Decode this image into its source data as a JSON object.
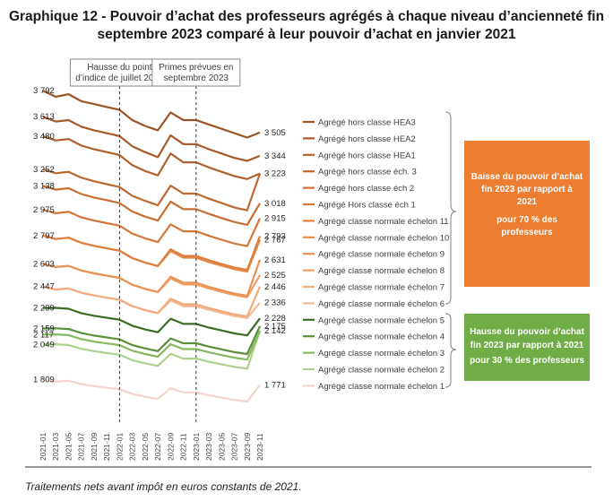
{
  "chart_data": {
    "type": "line",
    "title_lines": [
      "Graphique 12 - Pouvoir d’achat des professeurs agrégés à chaque niveau d’ancienneté fin",
      "septembre 2023 comparé à leur pouvoir d’achat en janvier 2021"
    ],
    "x": [
      "2021-01",
      "2021-03",
      "2021-05",
      "2021-07",
      "2021-09",
      "2021-11",
      "2022-01",
      "2022-03",
      "2022-05",
      "2022-07",
      "2022-09",
      "2022-11",
      "2023-01",
      "2023-03",
      "2023-05",
      "2023-07",
      "2023-09",
      "2023-11"
    ],
    "ylim": [
      1700,
      3830
    ],
    "markers": [
      {
        "x": 6,
        "label_lines": [
          "Hausse du point",
          "d’indice de juillet 2022"
        ]
      },
      {
        "x": 12,
        "label_lines": [
          "Primes prévues en",
          "septembre 2023"
        ]
      }
    ],
    "left_labels": [
      "3 792",
      "3 613",
      "3 480",
      "3 252",
      "3 138",
      "2 975",
      "2 797",
      "2 603",
      "2 447",
      "2 299",
      "2 159",
      "2 117",
      "2 049",
      "1 809"
    ],
    "right_labels": [
      "3 505",
      "3 344",
      "3 223",
      "3 018",
      "2 915",
      "2 793",
      "2 767",
      "2 631",
      "2 525",
      "2 446",
      "2 336",
      "2 228",
      "2 175",
      "2 142",
      "1 771"
    ],
    "series": [
      {
        "name": "Agrégé hors classe HEA3",
        "color": "#9b5525",
        "start": 3792,
        "end": 3505,
        "values": [
          3792,
          3750,
          3768,
          3720,
          3700,
          3680,
          3660,
          3590,
          3550,
          3520,
          3642,
          3590,
          3590,
          3560,
          3530,
          3500,
          3470,
          3505
        ]
      },
      {
        "name": "Agrégé hors classe HEA2",
        "color": "#a65a28",
        "start": 3613,
        "end": 3344,
        "values": [
          3613,
          3580,
          3590,
          3545,
          3520,
          3500,
          3480,
          3410,
          3370,
          3335,
          3485,
          3425,
          3425,
          3390,
          3360,
          3330,
          3310,
          3344
        ]
      },
      {
        "name": "Agrégé hors classe HEA1",
        "color": "#b1612b",
        "start": 3480,
        "end": 3223,
        "values": [
          3480,
          3450,
          3460,
          3415,
          3390,
          3370,
          3350,
          3280,
          3240,
          3210,
          3360,
          3300,
          3300,
          3265,
          3235,
          3205,
          3185,
          3223
        ]
      },
      {
        "name": "Agrégé hors classe éch. 3",
        "color": "#bc682f",
        "start": 3252,
        "end": 3223,
        "values": [
          3252,
          3225,
          3235,
          3195,
          3170,
          3150,
          3130,
          3070,
          3035,
          3005,
          3140,
          3085,
          3085,
          3050,
          3020,
          2990,
          2970,
          3223
        ]
      },
      {
        "name": "Agrégé hors classe éch 2",
        "color": "#c76f33",
        "start": 3138,
        "end": 3018,
        "values": [
          3138,
          3112,
          3122,
          3082,
          3058,
          3040,
          3020,
          2962,
          2927,
          2900,
          3030,
          2978,
          2978,
          2946,
          2917,
          2890,
          2870,
          3018
        ]
      },
      {
        "name": "Agrégé Hors classe éch 1",
        "color": "#d37738",
        "start": 2975,
        "end": 2915,
        "values": [
          2975,
          2950,
          2960,
          2922,
          2900,
          2882,
          2865,
          2810,
          2778,
          2752,
          2874,
          2826,
          2826,
          2795,
          2768,
          2742,
          2724,
          2915
        ]
      },
      {
        "name": "Agrégé classe normale échelon 11",
        "color": "#dd7f3e",
        "start": 2797,
        "end": 2793,
        "values": [
          2797,
          2773,
          2782,
          2747,
          2726,
          2709,
          2693,
          2642,
          2612,
          2588,
          2702,
          2657,
          2657,
          2628,
          2602,
          2578,
          2561,
          2793
        ]
      },
      {
        "name": "Agrégé classe normale échelon 10",
        "color": "#e58847",
        "start": 2797,
        "end": 2767,
        "values": [
          2797,
          2773,
          2782,
          2747,
          2726,
          2709,
          2693,
          2642,
          2612,
          2588,
          2690,
          2645,
          2645,
          2615,
          2590,
          2566,
          2549,
          2767
        ]
      },
      {
        "name": "Agrégé classe normale échelon 9",
        "color": "#ea9356",
        "start": 2603,
        "end": 2631,
        "values": [
          2603,
          2581,
          2589,
          2557,
          2537,
          2521,
          2506,
          2459,
          2431,
          2409,
          2514,
          2473,
          2473,
          2445,
          2421,
          2399,
          2383,
          2631
        ]
      },
      {
        "name": "Agrégé classe normale échelon 8",
        "color": "#ee9f67",
        "start": 2603,
        "end": 2525,
        "values": [
          2603,
          2581,
          2589,
          2557,
          2537,
          2521,
          2506,
          2459,
          2431,
          2409,
          2502,
          2461,
          2461,
          2434,
          2410,
          2388,
          2372,
          2525
        ]
      },
      {
        "name": "Agrégé classe normale échelon 7",
        "color": "#f1ac7b",
        "start": 2447,
        "end": 2446,
        "values": [
          2447,
          2426,
          2434,
          2404,
          2385,
          2370,
          2356,
          2312,
          2285,
          2264,
          2363,
          2325,
          2325,
          2299,
          2277,
          2256,
          2241,
          2446
        ]
      },
      {
        "name": "Agrégé classe normale échelon 6",
        "color": "#f4ba91",
        "start": 2447,
        "end": 2336,
        "values": [
          2447,
          2426,
          2434,
          2404,
          2385,
          2370,
          2356,
          2312,
          2285,
          2264,
          2350,
          2312,
          2312,
          2287,
          2265,
          2245,
          2230,
          2336
        ]
      },
      {
        "name": "Agrégé classe normale échelon 5",
        "color": "#3b6b25",
        "start": 2299,
        "end": 2228,
        "values": [
          2299,
          2300,
          2294,
          2264,
          2246,
          2232,
          2219,
          2178,
          2152,
          2133,
          2226,
          2190,
          2190,
          2165,
          2145,
          2125,
          2111,
          2228
        ]
      },
      {
        "name": "Agrégé classe normale échelon 4",
        "color": "#5b8f3a",
        "start": 2159,
        "end": 2175,
        "values": [
          2159,
          2160,
          2155,
          2127,
          2110,
          2097,
          2084,
          2045,
          2022,
          2003,
          2090,
          2057,
          2057,
          2034,
          2015,
          1996,
          1983,
          2175
        ]
      },
      {
        "name": "Agrégé classe normale échelon 3",
        "color": "#86b860",
        "start": 2117,
        "end": 2142,
        "values": [
          2117,
          2118,
          2113,
          2086,
          2069,
          2056,
          2044,
          2006,
          1983,
          1965,
          2050,
          2017,
          2017,
          1995,
          1976,
          1958,
          1945,
          2142
        ]
      },
      {
        "name": "Agrégé classe normale échelon 2",
        "color": "#aed08e",
        "start": 2049,
        "end": 2142,
        "values": [
          2049,
          2050,
          2045,
          2019,
          2003,
          1990,
          1978,
          1941,
          1919,
          1902,
          1984,
          1952,
          1952,
          1930,
          1912,
          1895,
          1882,
          2142
        ]
      },
      {
        "name": "Agrégé classe normale échelon 1",
        "color": "#f6d2cf",
        "start": 1809,
        "end": 1771,
        "values": [
          1809,
          1793,
          1800,
          1777,
          1763,
          1752,
          1741,
          1709,
          1690,
          1675,
          1748,
          1720,
          1720,
          1700,
          1684,
          1668,
          1657,
          1771
        ]
      }
    ],
    "orange_box": {
      "lines": [
        "Baisse du pouvoir d’achat",
        "fin 2023 par rapport à",
        "2021",
        "pour 70 % des",
        "professeurs"
      ],
      "color": "#ed7d31"
    },
    "green_box": {
      "lines": [
        "Hausse du pouvoir d’achat",
        "fin 2023 par rapport à 2021",
        "pour 30 % des professeurs"
      ],
      "color": "#70ad47"
    },
    "footnote": "Traitements nets avant impôt en euros constants de 2021."
  }
}
